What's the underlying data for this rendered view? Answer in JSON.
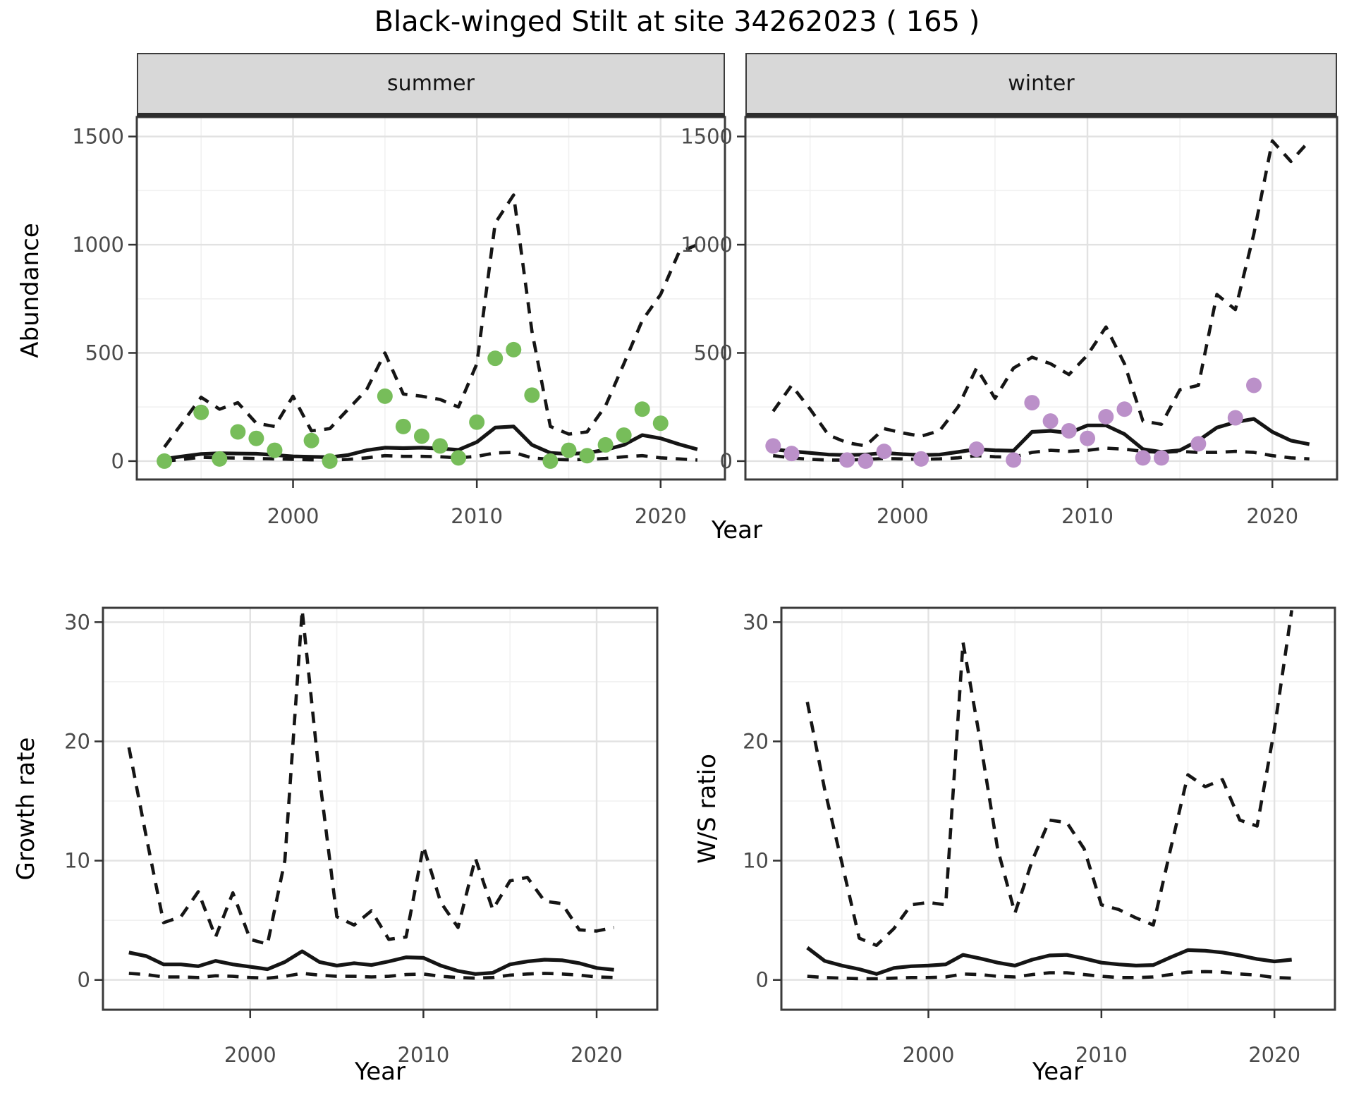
{
  "header": {
    "title": "Black-winged Stilt at site 34262023 ( 165 )"
  },
  "colors": {
    "observed_summer": "#77bd5a",
    "observed_winter": "#bb90c9",
    "line": "#151515",
    "grid_major": "#e2e2e2",
    "grid_minor": "#f1f1f1",
    "panel_border": "#3a3a3a",
    "strip_bg": "#d8d8d8",
    "tick_label": "#4a4a4a"
  },
  "chart_data": [
    {
      "id": "abundance-summer",
      "type": "line",
      "facet_label": "summer",
      "xlabel": "Year",
      "ylabel": "Abundance",
      "xlim": [
        1991.5,
        2023.5
      ],
      "ylim": [
        -85,
        1590
      ],
      "x_ticks": [
        2000,
        2010,
        2020
      ],
      "x_minor_ticks": [
        1995,
        2005,
        2015
      ],
      "y_ticks": [
        0,
        500,
        1000,
        1500
      ],
      "y_minor_ticks": [
        250,
        750,
        1250
      ],
      "series": [
        {
          "name": "model_fit",
          "style": "solid",
          "year_start": 1993,
          "values": [
            10,
            22,
            33,
            36,
            35,
            34,
            28,
            22,
            20,
            18,
            28,
            50,
            62,
            60,
            62,
            58,
            52,
            88,
            155,
            160,
            75,
            38,
            33,
            38,
            52,
            75,
            120,
            105,
            78,
            54
          ]
        },
        {
          "name": "upper_credible_interval",
          "style": "dashed",
          "year_start": 1993,
          "values": [
            65,
            180,
            295,
            240,
            270,
            175,
            160,
            300,
            140,
            150,
            240,
            330,
            500,
            310,
            300,
            285,
            250,
            450,
            1100,
            1230,
            600,
            160,
            125,
            135,
            255,
            450,
            650,
            770,
            965,
            1000
          ]
        },
        {
          "name": "lower_credible_interval",
          "style": "dashed",
          "year_start": 1993,
          "values": [
            0,
            8,
            18,
            15,
            14,
            12,
            10,
            8,
            6,
            5,
            8,
            15,
            25,
            22,
            22,
            20,
            15,
            22,
            38,
            40,
            15,
            8,
            6,
            8,
            12,
            20,
            25,
            15,
            10,
            5
          ]
        }
      ],
      "observed_points": {
        "name": "observed_counts_summer",
        "color": "#77bd5a",
        "years": [
          1993,
          1995,
          1996,
          1997,
          1998,
          1999,
          2001,
          2002,
          2005,
          2006,
          2007,
          2008,
          2009,
          2010,
          2011,
          2012,
          2013,
          2014,
          2015,
          2016,
          2017,
          2018,
          2019,
          2020
        ],
        "values": [
          0,
          225,
          10,
          135,
          105,
          50,
          95,
          0,
          300,
          160,
          115,
          70,
          15,
          180,
          475,
          515,
          305,
          0,
          50,
          25,
          75,
          120,
          240,
          175
        ]
      }
    },
    {
      "id": "abundance-winter",
      "type": "line",
      "facet_label": "winter",
      "xlabel": "Year",
      "ylabel": "Abundance",
      "xlim": [
        1991.5,
        2023.5
      ],
      "ylim": [
        -85,
        1590
      ],
      "x_ticks": [
        2000,
        2010,
        2020
      ],
      "x_minor_ticks": [
        1995,
        2005,
        2015
      ],
      "y_ticks": [
        0,
        500,
        1000,
        1500
      ],
      "y_minor_ticks": [
        250,
        750,
        1250
      ],
      "series": [
        {
          "name": "model_fit",
          "style": "solid",
          "year_start": 1993,
          "values": [
            55,
            45,
            38,
            30,
            28,
            30,
            38,
            32,
            28,
            30,
            42,
            55,
            50,
            48,
            135,
            140,
            130,
            165,
            165,
            125,
            55,
            42,
            50,
            95,
            155,
            180,
            195,
            135,
            95,
            78
          ]
        },
        {
          "name": "upper_credible_interval",
          "style": "dashed",
          "year_start": 1993,
          "values": [
            230,
            350,
            240,
            120,
            85,
            70,
            150,
            130,
            115,
            140,
            250,
            430,
            290,
            430,
            480,
            450,
            400,
            490,
            620,
            450,
            185,
            170,
            330,
            350,
            770,
            700,
            1050,
            1480,
            1385,
            1480
          ]
        },
        {
          "name": "lower_credible_interval",
          "style": "dashed",
          "year_start": 1993,
          "values": [
            25,
            15,
            8,
            5,
            5,
            8,
            12,
            10,
            8,
            10,
            15,
            25,
            20,
            18,
            40,
            50,
            45,
            50,
            60,
            55,
            45,
            40,
            45,
            40,
            40,
            45,
            40,
            25,
            15,
            10
          ]
        }
      ],
      "observed_points": {
        "name": "observed_counts_winter",
        "color": "#bb90c9",
        "years": [
          1993,
          1994,
          1997,
          1998,
          1999,
          2001,
          2004,
          2006,
          2007,
          2008,
          2009,
          2010,
          2011,
          2012,
          2013,
          2014,
          2016,
          2018,
          2019
        ],
        "values": [
          70,
          35,
          5,
          0,
          45,
          10,
          55,
          5,
          270,
          185,
          140,
          105,
          205,
          240,
          15,
          15,
          80,
          200,
          350
        ]
      }
    },
    {
      "id": "growth-rate",
      "type": "line",
      "facet_label": "",
      "xlabel": "Year",
      "ylabel": "Growth rate",
      "xlim": [
        1991.5,
        2023.5
      ],
      "ylim": [
        -2.5,
        31.2
      ],
      "x_ticks": [
        2000,
        2010,
        2020
      ],
      "x_minor_ticks": [
        1995,
        2005,
        2015
      ],
      "y_ticks": [
        0,
        10,
        20,
        30
      ],
      "y_minor_ticks": [
        5,
        15,
        25
      ],
      "series": [
        {
          "name": "median_growth_rate",
          "style": "solid",
          "year_start": 1993,
          "values": [
            2.3,
            2.0,
            1.3,
            1.3,
            1.15,
            1.6,
            1.3,
            1.1,
            0.9,
            1.5,
            2.4,
            1.5,
            1.2,
            1.4,
            1.25,
            1.55,
            1.9,
            1.85,
            1.2,
            0.75,
            0.5,
            0.6,
            1.3,
            1.55,
            1.7,
            1.65,
            1.4,
            1.0,
            0.85
          ]
        },
        {
          "name": "upper_credible_interval",
          "style": "dashed",
          "year_start": 1993,
          "values": [
            19.5,
            12,
            4.8,
            5.3,
            7.4,
            3.6,
            7.3,
            3.4,
            3.0,
            10,
            31,
            17,
            5.3,
            4.6,
            5.8,
            3.4,
            3.6,
            11.2,
            6.5,
            4.4,
            10.2,
            5.9,
            8.3,
            8.6,
            6.6,
            6.4,
            4.2,
            4.1,
            4.4
          ]
        },
        {
          "name": "lower_credible_interval",
          "style": "dashed",
          "year_start": 1993,
          "values": [
            0.55,
            0.45,
            0.25,
            0.25,
            0.2,
            0.35,
            0.3,
            0.2,
            0.15,
            0.3,
            0.55,
            0.4,
            0.3,
            0.3,
            0.25,
            0.3,
            0.45,
            0.5,
            0.3,
            0.2,
            0.15,
            0.2,
            0.4,
            0.5,
            0.55,
            0.5,
            0.4,
            0.25,
            0.2
          ]
        }
      ]
    },
    {
      "id": "winter-summer-ratio",
      "type": "line",
      "facet_label": "",
      "xlabel": "Year",
      "ylabel": "W/S ratio",
      "xlim": [
        1991.5,
        2023.5
      ],
      "ylim": [
        -2.5,
        31.2
      ],
      "x_ticks": [
        2000,
        2010,
        2020
      ],
      "x_minor_ticks": [
        1995,
        2005,
        2015
      ],
      "y_ticks": [
        0,
        10,
        20,
        30
      ],
      "y_minor_ticks": [
        5,
        15,
        25
      ],
      "series": [
        {
          "name": "median_ws_ratio",
          "style": "solid",
          "year_start": 1993,
          "values": [
            2.7,
            1.6,
            1.2,
            0.9,
            0.5,
            1.0,
            1.15,
            1.2,
            1.3,
            2.1,
            1.8,
            1.45,
            1.2,
            1.7,
            2.05,
            2.1,
            1.8,
            1.45,
            1.3,
            1.2,
            1.25,
            1.9,
            2.5,
            2.45,
            2.3,
            2.05,
            1.75,
            1.55,
            1.7
          ]
        },
        {
          "name": "upper_credible_interval",
          "style": "dashed",
          "year_start": 1993,
          "values": [
            23.3,
            16,
            9.8,
            3.5,
            2.9,
            4.3,
            6.3,
            6.5,
            6.3,
            28.3,
            20,
            11,
            5.6,
            10,
            13.4,
            13.2,
            11,
            6.3,
            5.9,
            5.2,
            4.6,
            11,
            17.2,
            16.2,
            16.8,
            13.4,
            12.9,
            21,
            31
          ]
        },
        {
          "name": "lower_credible_interval",
          "style": "dashed",
          "year_start": 1993,
          "values": [
            0.3,
            0.2,
            0.15,
            0.1,
            0.1,
            0.15,
            0.2,
            0.2,
            0.25,
            0.5,
            0.45,
            0.3,
            0.25,
            0.45,
            0.6,
            0.6,
            0.45,
            0.3,
            0.2,
            0.2,
            0.25,
            0.45,
            0.65,
            0.7,
            0.65,
            0.5,
            0.4,
            0.2,
            0.15
          ]
        }
      ]
    }
  ]
}
